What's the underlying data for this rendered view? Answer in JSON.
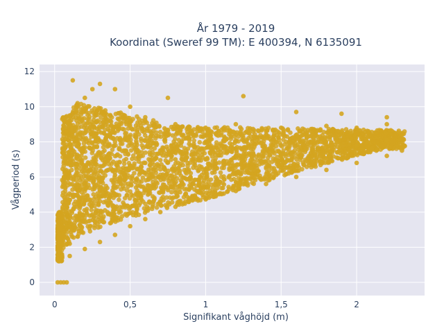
{
  "chart_data": {
    "type": "scatter",
    "title_line1": "År 1979 - 2019",
    "title_line2": "Koordinat (Sweref 99 TM): E 400394, N 6135091",
    "xlabel": "Signifikant våghöjd (m)",
    "ylabel": "Vågperiod (s)",
    "xlim": [
      -0.1,
      2.45
    ],
    "ylim": [
      -0.75,
      12.4
    ],
    "x_ticks": [
      0,
      0.5,
      1,
      1.5,
      2
    ],
    "x_tick_labels": [
      "0",
      "0,5",
      "1",
      "1,5",
      "2"
    ],
    "y_ticks": [
      0,
      2,
      4,
      6,
      8,
      10,
      12
    ],
    "y_tick_labels": [
      "0",
      "2",
      "4",
      "6",
      "8",
      "10",
      "12"
    ],
    "grid": true,
    "marker_color": "#d4a520",
    "plot_bg": "#e5e5f0",
    "series": [
      {
        "points": [
          [
            0.02,
            0
          ],
          [
            0.04,
            0
          ],
          [
            0.06,
            0
          ],
          [
            0.08,
            0
          ],
          [
            0.05,
            1.5
          ],
          [
            0.1,
            2.2
          ],
          [
            0.2,
            3.5
          ],
          [
            0.3,
            5.2
          ],
          [
            0.4,
            6.1
          ],
          [
            0.5,
            6.5
          ],
          [
            0.6,
            6.8
          ],
          [
            0.8,
            7.0
          ],
          [
            1.0,
            7.0
          ],
          [
            1.2,
            7.2
          ],
          [
            1.5,
            7.2
          ],
          [
            1.8,
            7.5
          ],
          [
            2.0,
            7.8
          ],
          [
            2.2,
            8.1
          ],
          [
            2.3,
            8.5
          ],
          [
            0.02,
            1.3
          ],
          [
            0.05,
            1.4
          ],
          [
            0.1,
            1.5
          ],
          [
            0.2,
            1.9
          ],
          [
            0.3,
            2.3
          ],
          [
            0.4,
            2.7
          ],
          [
            0.5,
            3.2
          ],
          [
            0.6,
            3.6
          ],
          [
            0.7,
            4.0
          ],
          [
            0.8,
            4.3
          ],
          [
            1.0,
            4.8
          ],
          [
            1.2,
            5.2
          ],
          [
            1.4,
            5.6
          ],
          [
            1.6,
            6.0
          ],
          [
            1.8,
            6.4
          ],
          [
            2.0,
            6.8
          ],
          [
            2.2,
            7.2
          ],
          [
            2.3,
            7.5
          ],
          [
            0.1,
            9.5
          ],
          [
            0.2,
            10.5
          ],
          [
            0.3,
            11.3
          ],
          [
            0.5,
            10.0
          ],
          [
            0.6,
            9.4
          ],
          [
            0.8,
            9.0
          ],
          [
            1.0,
            8.8
          ],
          [
            1.2,
            9.0
          ],
          [
            1.5,
            8.8
          ],
          [
            1.8,
            8.9
          ],
          [
            2.0,
            8.8
          ],
          [
            2.2,
            9.0
          ],
          [
            0.12,
            11.5
          ],
          [
            0.25,
            11.0
          ],
          [
            0.4,
            11.0
          ],
          [
            0.75,
            10.5
          ],
          [
            1.25,
            10.6
          ],
          [
            1.6,
            9.7
          ],
          [
            1.9,
            9.6
          ],
          [
            2.2,
            9.4
          ],
          [
            0.2,
            8.5
          ],
          [
            0.4,
            8.0
          ],
          [
            0.7,
            7.5
          ],
          [
            0.9,
            7.8
          ],
          [
            1.1,
            7.4
          ],
          [
            1.3,
            6.5
          ],
          [
            1.7,
            7.0
          ],
          [
            2.1,
            7.6
          ],
          [
            0.15,
            5.0
          ],
          [
            0.35,
            4.0
          ],
          [
            0.55,
            5.5
          ],
          [
            0.9,
            6.0
          ]
        ]
      }
    ]
  }
}
